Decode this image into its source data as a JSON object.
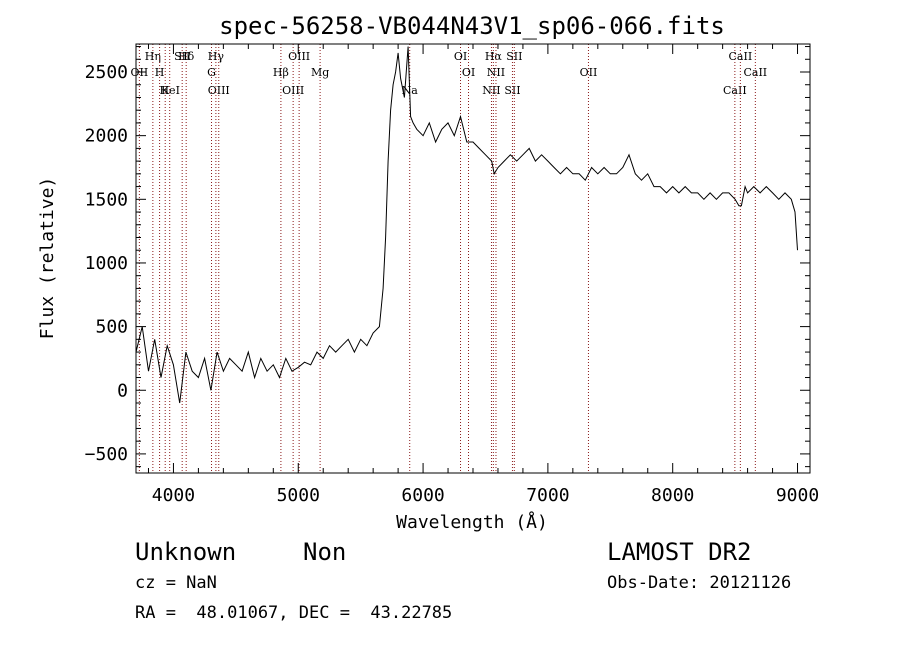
{
  "chart_data": {
    "type": "line",
    "title": "spec-56258-VB044N43V1_sp06-066.fits",
    "xlabel": "Wavelength (Å)",
    "ylabel": "Flux (relative)",
    "xlim": [
      3700,
      9100
    ],
    "ylim": [
      -650,
      2720
    ],
    "x_ticks": [
      4000,
      5000,
      6000,
      7000,
      8000,
      9000
    ],
    "y_ticks": [
      -500,
      0,
      500,
      1000,
      1500,
      2000,
      2500
    ],
    "grid": false,
    "line_color": "#000000",
    "marker_color": "#8b1a1a",
    "spectrum": {
      "x": [
        3700,
        3750,
        3800,
        3850,
        3900,
        3950,
        4000,
        4050,
        4100,
        4150,
        4200,
        4250,
        4300,
        4350,
        4400,
        4450,
        4500,
        4550,
        4600,
        4650,
        4700,
        4750,
        4800,
        4850,
        4900,
        4950,
        5000,
        5050,
        5100,
        5150,
        5200,
        5250,
        5300,
        5350,
        5400,
        5450,
        5500,
        5550,
        5600,
        5650,
        5680,
        5700,
        5720,
        5740,
        5760,
        5780,
        5800,
        5820,
        5850,
        5880,
        5900,
        5920,
        5950,
        6000,
        6050,
        6100,
        6150,
        6200,
        6250,
        6300,
        6350,
        6400,
        6450,
        6500,
        6550,
        6570,
        6600,
        6650,
        6700,
        6750,
        6800,
        6850,
        6900,
        6950,
        7000,
        7050,
        7100,
        7150,
        7200,
        7250,
        7300,
        7350,
        7400,
        7450,
        7500,
        7550,
        7600,
        7650,
        7700,
        7750,
        7800,
        7850,
        7900,
        7950,
        8000,
        8050,
        8100,
        8150,
        8200,
        8250,
        8300,
        8350,
        8400,
        8450,
        8500,
        8530,
        8550,
        8580,
        8600,
        8650,
        8700,
        8750,
        8800,
        8850,
        8900,
        8950,
        8980,
        9000
      ],
      "y": [
        300,
        500,
        150,
        400,
        100,
        350,
        200,
        -100,
        300,
        150,
        100,
        250,
        0,
        300,
        150,
        250,
        200,
        150,
        300,
        100,
        250,
        150,
        200,
        100,
        250,
        150,
        180,
        220,
        200,
        300,
        250,
        350,
        300,
        350,
        400,
        300,
        400,
        350,
        450,
        500,
        800,
        1200,
        1800,
        2200,
        2400,
        2500,
        2650,
        2450,
        2300,
        2700,
        2150,
        2100,
        2050,
        2000,
        2100,
        1950,
        2050,
        2100,
        2000,
        2150,
        1950,
        1950,
        1900,
        1850,
        1800,
        1700,
        1750,
        1800,
        1850,
        1800,
        1850,
        1900,
        1800,
        1850,
        1800,
        1750,
        1700,
        1750,
        1700,
        1700,
        1650,
        1750,
        1700,
        1750,
        1700,
        1700,
        1750,
        1850,
        1700,
        1650,
        1700,
        1600,
        1600,
        1550,
        1600,
        1550,
        1600,
        1550,
        1550,
        1500,
        1550,
        1500,
        1550,
        1550,
        1500,
        1450,
        1450,
        1600,
        1550,
        1600,
        1550,
        1600,
        1550,
        1500,
        1550,
        1500,
        1400,
        1100
      ]
    },
    "line_markers": [
      {
        "wl": 3835,
        "label": "Hη"
      },
      {
        "wl": 3889,
        "label": "H"
      },
      {
        "wl": 3934,
        "label": "K"
      },
      {
        "wl": 4102,
        "label": "Hδ"
      },
      {
        "wl": 4305,
        "label": "G"
      },
      {
        "wl": 4363,
        "label": "OIII"
      },
      {
        "wl": 4340,
        "label": "Hγ"
      },
      {
        "wl": 3727,
        "label": "OII"
      },
      {
        "wl": 3970,
        "label": "HeI"
      },
      {
        "wl": 4070,
        "label": "SII"
      },
      {
        "wl": 4861,
        "label": "Hβ"
      },
      {
        "wl": 4959,
        "label": "OIII"
      },
      {
        "wl": 5007,
        "label": "OIII"
      },
      {
        "wl": 5175,
        "label": "Mg"
      },
      {
        "wl": 5893,
        "label": "Na"
      },
      {
        "wl": 6300,
        "label": "OI"
      },
      {
        "wl": 6364,
        "label": "OI"
      },
      {
        "wl": 6548,
        "label": "NII"
      },
      {
        "wl": 6563,
        "label": "Hα"
      },
      {
        "wl": 6584,
        "label": "NII"
      },
      {
        "wl": 6716,
        "label": "SII"
      },
      {
        "wl": 6731,
        "label": "SII"
      },
      {
        "wl": 7325,
        "label": "OII"
      },
      {
        "wl": 8498,
        "label": "CaII"
      },
      {
        "wl": 8542,
        "label": "CaII"
      },
      {
        "wl": 8662,
        "label": "CaII"
      }
    ]
  },
  "info": {
    "class_label": "Unknown",
    "subclass_label": "Non",
    "survey_label": "LAMOST DR2",
    "cz_text": "cz = NaN",
    "obs_date_text": "Obs-Date: 20121126",
    "radec_text": "RA =  48.01067, DEC =  43.22785"
  }
}
